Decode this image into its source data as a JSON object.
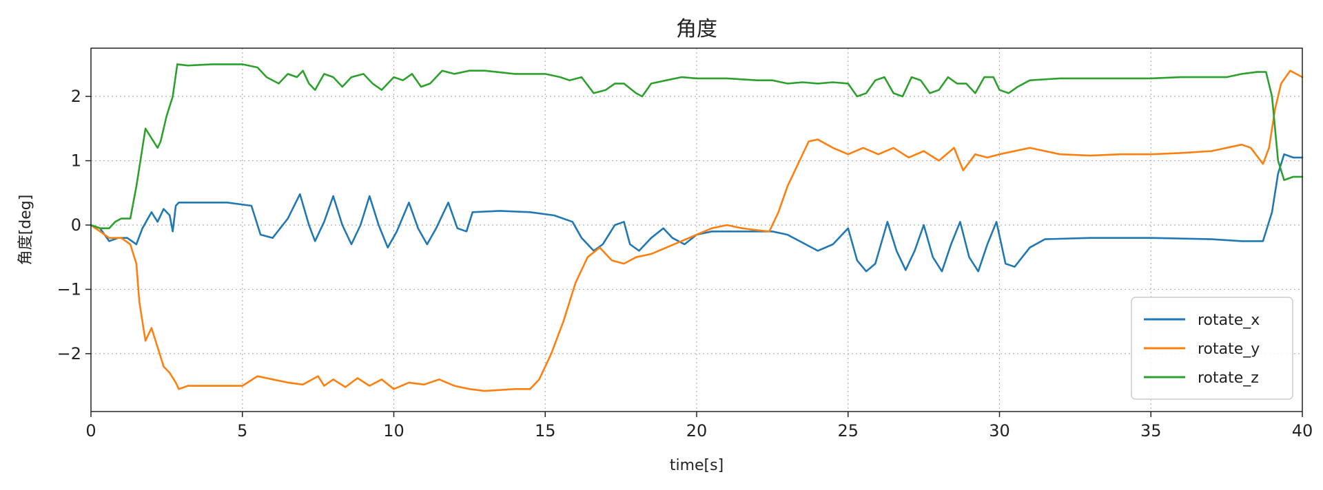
{
  "chart_data": {
    "type": "line",
    "title": "角度",
    "xlabel": "time[s]",
    "ylabel": "角度[deg]",
    "xlim": [
      0,
      40
    ],
    "ylim": [
      -2.9,
      2.75
    ],
    "x_ticks": [
      0,
      5,
      10,
      15,
      20,
      25,
      30,
      35,
      40
    ],
    "x_tick_labels": [
      "0",
      "5",
      "10",
      "15",
      "20",
      "25",
      "30",
      "35",
      "40"
    ],
    "y_ticks": [
      2,
      1,
      0,
      -1,
      -2
    ],
    "y_tick_labels": [
      "2",
      "1",
      "0",
      "−1",
      "−2"
    ],
    "grid": true,
    "grid_style": "dotted",
    "legend_position": "lower-right",
    "series": [
      {
        "name": "rotate_x",
        "color": "#1f77b4",
        "points": [
          [
            0,
            0.0
          ],
          [
            0.3,
            -0.05
          ],
          [
            0.6,
            -0.25
          ],
          [
            0.9,
            -0.2
          ],
          [
            1.2,
            -0.2
          ],
          [
            1.5,
            -0.3
          ],
          [
            1.7,
            -0.05
          ],
          [
            2.0,
            0.2
          ],
          [
            2.2,
            0.05
          ],
          [
            2.4,
            0.25
          ],
          [
            2.6,
            0.15
          ],
          [
            2.7,
            -0.1
          ],
          [
            2.8,
            0.3
          ],
          [
            2.9,
            0.35
          ],
          [
            3.3,
            0.35
          ],
          [
            4.5,
            0.35
          ],
          [
            5.3,
            0.3
          ],
          [
            5.6,
            -0.15
          ],
          [
            6.0,
            -0.2
          ],
          [
            6.5,
            0.1
          ],
          [
            6.9,
            0.48
          ],
          [
            7.2,
            0.0
          ],
          [
            7.4,
            -0.25
          ],
          [
            7.7,
            0.05
          ],
          [
            8.0,
            0.45
          ],
          [
            8.3,
            0.0
          ],
          [
            8.6,
            -0.3
          ],
          [
            8.9,
            0.0
          ],
          [
            9.2,
            0.45
          ],
          [
            9.5,
            0.0
          ],
          [
            9.8,
            -0.35
          ],
          [
            10.1,
            -0.1
          ],
          [
            10.5,
            0.35
          ],
          [
            10.8,
            -0.05
          ],
          [
            11.1,
            -0.3
          ],
          [
            11.4,
            -0.05
          ],
          [
            11.8,
            0.35
          ],
          [
            12.1,
            -0.05
          ],
          [
            12.4,
            -0.1
          ],
          [
            12.6,
            0.2
          ],
          [
            13.5,
            0.22
          ],
          [
            14.5,
            0.2
          ],
          [
            15.3,
            0.15
          ],
          [
            15.9,
            0.05
          ],
          [
            16.2,
            -0.2
          ],
          [
            16.6,
            -0.4
          ],
          [
            16.9,
            -0.3
          ],
          [
            17.3,
            0.0
          ],
          [
            17.6,
            0.05
          ],
          [
            17.8,
            -0.3
          ],
          [
            18.1,
            -0.4
          ],
          [
            18.5,
            -0.2
          ],
          [
            18.9,
            -0.05
          ],
          [
            19.2,
            -0.2
          ],
          [
            19.6,
            -0.3
          ],
          [
            20.0,
            -0.15
          ],
          [
            20.5,
            -0.1
          ],
          [
            21.0,
            -0.1
          ],
          [
            22.0,
            -0.1
          ],
          [
            22.5,
            -0.1
          ],
          [
            23.0,
            -0.15
          ],
          [
            23.6,
            -0.3
          ],
          [
            24.0,
            -0.4
          ],
          [
            24.5,
            -0.3
          ],
          [
            25.0,
            -0.05
          ],
          [
            25.3,
            -0.55
          ],
          [
            25.6,
            -0.72
          ],
          [
            25.9,
            -0.6
          ],
          [
            26.3,
            0.05
          ],
          [
            26.6,
            -0.4
          ],
          [
            26.9,
            -0.7
          ],
          [
            27.2,
            -0.4
          ],
          [
            27.5,
            0.0
          ],
          [
            27.8,
            -0.5
          ],
          [
            28.1,
            -0.72
          ],
          [
            28.4,
            -0.3
          ],
          [
            28.7,
            0.05
          ],
          [
            29.0,
            -0.5
          ],
          [
            29.3,
            -0.72
          ],
          [
            29.6,
            -0.3
          ],
          [
            29.9,
            0.05
          ],
          [
            30.2,
            -0.6
          ],
          [
            30.5,
            -0.65
          ],
          [
            31.0,
            -0.35
          ],
          [
            31.5,
            -0.22
          ],
          [
            33.0,
            -0.2
          ],
          [
            35.0,
            -0.2
          ],
          [
            37.0,
            -0.22
          ],
          [
            38.0,
            -0.25
          ],
          [
            38.7,
            -0.25
          ],
          [
            39.0,
            0.2
          ],
          [
            39.2,
            0.8
          ],
          [
            39.4,
            1.1
          ],
          [
            39.7,
            1.05
          ],
          [
            40.0,
            1.05
          ]
        ]
      },
      {
        "name": "rotate_y",
        "color": "#ff7f0e",
        "points": [
          [
            0,
            0.0
          ],
          [
            0.3,
            -0.1
          ],
          [
            0.6,
            -0.2
          ],
          [
            1.0,
            -0.2
          ],
          [
            1.3,
            -0.3
          ],
          [
            1.5,
            -0.6
          ],
          [
            1.6,
            -1.2
          ],
          [
            1.8,
            -1.8
          ],
          [
            2.0,
            -1.6
          ],
          [
            2.2,
            -1.9
          ],
          [
            2.4,
            -2.2
          ],
          [
            2.6,
            -2.3
          ],
          [
            2.8,
            -2.45
          ],
          [
            2.9,
            -2.55
          ],
          [
            3.2,
            -2.5
          ],
          [
            4.0,
            -2.5
          ],
          [
            5.0,
            -2.5
          ],
          [
            5.5,
            -2.35
          ],
          [
            6.0,
            -2.4
          ],
          [
            6.5,
            -2.45
          ],
          [
            7.0,
            -2.48
          ],
          [
            7.5,
            -2.35
          ],
          [
            7.7,
            -2.5
          ],
          [
            8.0,
            -2.4
          ],
          [
            8.4,
            -2.52
          ],
          [
            8.8,
            -2.38
          ],
          [
            9.2,
            -2.5
          ],
          [
            9.6,
            -2.4
          ],
          [
            10.0,
            -2.55
          ],
          [
            10.5,
            -2.45
          ],
          [
            11.0,
            -2.48
          ],
          [
            11.5,
            -2.4
          ],
          [
            12.0,
            -2.5
          ],
          [
            12.5,
            -2.55
          ],
          [
            13.0,
            -2.58
          ],
          [
            14.0,
            -2.55
          ],
          [
            14.5,
            -2.55
          ],
          [
            14.8,
            -2.4
          ],
          [
            15.2,
            -2.0
          ],
          [
            15.6,
            -1.5
          ],
          [
            16.0,
            -0.9
          ],
          [
            16.4,
            -0.5
          ],
          [
            16.8,
            -0.35
          ],
          [
            17.2,
            -0.55
          ],
          [
            17.6,
            -0.6
          ],
          [
            18.0,
            -0.5
          ],
          [
            18.5,
            -0.45
          ],
          [
            19.0,
            -0.35
          ],
          [
            19.5,
            -0.25
          ],
          [
            20.0,
            -0.15
          ],
          [
            20.5,
            -0.05
          ],
          [
            21.0,
            0.0
          ],
          [
            21.5,
            -0.05
          ],
          [
            22.0,
            -0.08
          ],
          [
            22.4,
            -0.1
          ],
          [
            22.7,
            0.2
          ],
          [
            23.0,
            0.6
          ],
          [
            23.4,
            1.0
          ],
          [
            23.7,
            1.3
          ],
          [
            24.0,
            1.33
          ],
          [
            24.5,
            1.2
          ],
          [
            25.0,
            1.1
          ],
          [
            25.5,
            1.2
          ],
          [
            26.0,
            1.1
          ],
          [
            26.5,
            1.2
          ],
          [
            27.0,
            1.05
          ],
          [
            27.5,
            1.15
          ],
          [
            28.0,
            1.0
          ],
          [
            28.5,
            1.2
          ],
          [
            28.8,
            0.85
          ],
          [
            29.2,
            1.1
          ],
          [
            29.6,
            1.05
          ],
          [
            30.0,
            1.1
          ],
          [
            30.5,
            1.15
          ],
          [
            31.0,
            1.2
          ],
          [
            31.5,
            1.15
          ],
          [
            32.0,
            1.1
          ],
          [
            33.0,
            1.08
          ],
          [
            34.0,
            1.1
          ],
          [
            35.0,
            1.1
          ],
          [
            36.0,
            1.12
          ],
          [
            37.0,
            1.15
          ],
          [
            37.5,
            1.2
          ],
          [
            38.0,
            1.25
          ],
          [
            38.3,
            1.2
          ],
          [
            38.7,
            0.95
          ],
          [
            38.9,
            1.2
          ],
          [
            39.1,
            1.8
          ],
          [
            39.3,
            2.2
          ],
          [
            39.6,
            2.4
          ],
          [
            40.0,
            2.3
          ]
        ]
      },
      {
        "name": "rotate_z",
        "color": "#2ca02c",
        "points": [
          [
            0,
            0.0
          ],
          [
            0.3,
            -0.05
          ],
          [
            0.6,
            -0.05
          ],
          [
            0.8,
            0.05
          ],
          [
            1.0,
            0.1
          ],
          [
            1.3,
            0.1
          ],
          [
            1.5,
            0.6
          ],
          [
            1.7,
            1.2
          ],
          [
            1.8,
            1.5
          ],
          [
            2.0,
            1.35
          ],
          [
            2.2,
            1.2
          ],
          [
            2.3,
            1.3
          ],
          [
            2.5,
            1.7
          ],
          [
            2.7,
            2.0
          ],
          [
            2.85,
            2.5
          ],
          [
            3.2,
            2.48
          ],
          [
            4.0,
            2.5
          ],
          [
            5.0,
            2.5
          ],
          [
            5.5,
            2.45
          ],
          [
            5.8,
            2.3
          ],
          [
            6.2,
            2.2
          ],
          [
            6.5,
            2.35
          ],
          [
            6.8,
            2.3
          ],
          [
            7.0,
            2.4
          ],
          [
            7.2,
            2.2
          ],
          [
            7.4,
            2.1
          ],
          [
            7.7,
            2.35
          ],
          [
            8.0,
            2.3
          ],
          [
            8.3,
            2.15
          ],
          [
            8.6,
            2.3
          ],
          [
            9.0,
            2.35
          ],
          [
            9.3,
            2.2
          ],
          [
            9.6,
            2.1
          ],
          [
            10.0,
            2.3
          ],
          [
            10.3,
            2.25
          ],
          [
            10.6,
            2.35
          ],
          [
            10.9,
            2.15
          ],
          [
            11.2,
            2.2
          ],
          [
            11.6,
            2.4
          ],
          [
            12.0,
            2.35
          ],
          [
            12.5,
            2.4
          ],
          [
            13.0,
            2.4
          ],
          [
            14.0,
            2.35
          ],
          [
            15.0,
            2.35
          ],
          [
            15.5,
            2.3
          ],
          [
            15.8,
            2.25
          ],
          [
            16.2,
            2.3
          ],
          [
            16.6,
            2.05
          ],
          [
            17.0,
            2.1
          ],
          [
            17.3,
            2.2
          ],
          [
            17.6,
            2.2
          ],
          [
            18.0,
            2.05
          ],
          [
            18.2,
            2.0
          ],
          [
            18.5,
            2.2
          ],
          [
            19.0,
            2.25
          ],
          [
            19.5,
            2.3
          ],
          [
            20.0,
            2.28
          ],
          [
            20.5,
            2.28
          ],
          [
            21.0,
            2.28
          ],
          [
            22.0,
            2.25
          ],
          [
            22.5,
            2.25
          ],
          [
            23.0,
            2.2
          ],
          [
            23.5,
            2.22
          ],
          [
            24.0,
            2.2
          ],
          [
            24.5,
            2.22
          ],
          [
            25.0,
            2.2
          ],
          [
            25.3,
            2.0
          ],
          [
            25.6,
            2.05
          ],
          [
            25.9,
            2.25
          ],
          [
            26.2,
            2.3
          ],
          [
            26.5,
            2.05
          ],
          [
            26.8,
            2.0
          ],
          [
            27.1,
            2.3
          ],
          [
            27.4,
            2.25
          ],
          [
            27.7,
            2.05
          ],
          [
            28.0,
            2.1
          ],
          [
            28.3,
            2.3
          ],
          [
            28.6,
            2.2
          ],
          [
            28.9,
            2.2
          ],
          [
            29.2,
            2.05
          ],
          [
            29.5,
            2.3
          ],
          [
            29.8,
            2.3
          ],
          [
            30.0,
            2.1
          ],
          [
            30.3,
            2.05
          ],
          [
            30.6,
            2.15
          ],
          [
            31.0,
            2.25
          ],
          [
            32.0,
            2.28
          ],
          [
            33.0,
            2.28
          ],
          [
            34.0,
            2.28
          ],
          [
            35.0,
            2.28
          ],
          [
            36.0,
            2.3
          ],
          [
            37.0,
            2.3
          ],
          [
            37.5,
            2.3
          ],
          [
            38.0,
            2.35
          ],
          [
            38.5,
            2.38
          ],
          [
            38.8,
            2.38
          ],
          [
            39.0,
            2.0
          ],
          [
            39.2,
            1.0
          ],
          [
            39.4,
            0.7
          ],
          [
            39.7,
            0.75
          ],
          [
            40.0,
            0.75
          ]
        ]
      }
    ]
  }
}
